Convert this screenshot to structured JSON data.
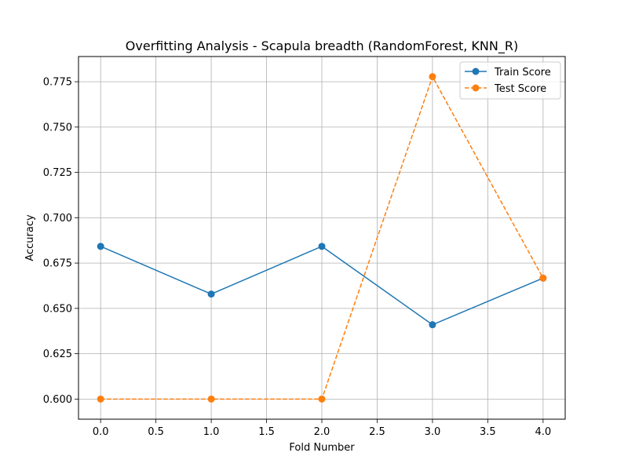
{
  "chart_data": {
    "type": "line",
    "title": "Overfitting Analysis - Scapula breadth (RandomForest, KNN_R)",
    "xlabel": "Fold Number",
    "ylabel": "Accuracy",
    "x": [
      0,
      1,
      2,
      3,
      4
    ],
    "xlim": [
      -0.2,
      4.2
    ],
    "ylim": [
      0.5889,
      0.7889
    ],
    "xticks": [
      "0.0",
      "0.5",
      "1.0",
      "1.5",
      "2.0",
      "2.5",
      "3.0",
      "3.5",
      "4.0"
    ],
    "yticks": [
      "0.600",
      "0.625",
      "0.650",
      "0.675",
      "0.700",
      "0.725",
      "0.750",
      "0.775"
    ],
    "grid": true,
    "legend_position": "top-right",
    "series": [
      {
        "name": "Train Score",
        "color": "#1f77b4",
        "style": "solid",
        "marker": "circle",
        "values": [
          0.6842,
          0.6579,
          0.6842,
          0.641,
          0.6667
        ]
      },
      {
        "name": "Test Score",
        "color": "#ff7f0e",
        "style": "dashed",
        "marker": "circle",
        "values": [
          0.6,
          0.6,
          0.6,
          0.7778,
          0.6667
        ]
      }
    ]
  }
}
